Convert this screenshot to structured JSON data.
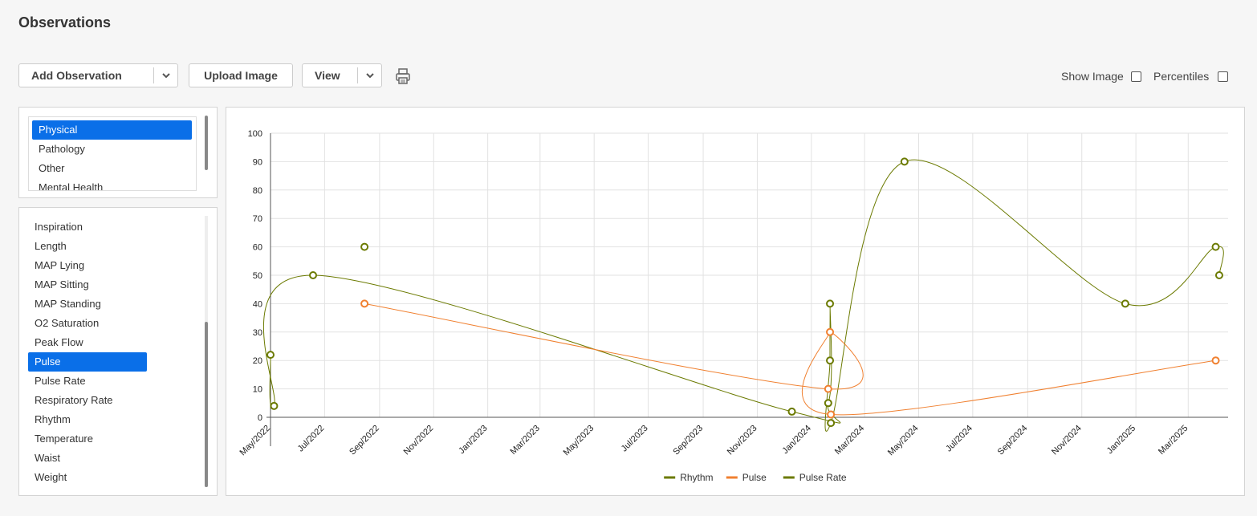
{
  "page": {
    "title": "Observations"
  },
  "toolbar": {
    "add_observation": "Add Observation",
    "upload_image": "Upload Image",
    "view": "View",
    "show_image": "Show Image",
    "percentiles": "Percentiles"
  },
  "categories": [
    "Physical",
    "Pathology",
    "Other",
    "Mental Health"
  ],
  "observations": [
    "Inspiration",
    "Length",
    "MAP Lying",
    "MAP Sitting",
    "MAP Standing",
    "O2 Saturation",
    "Peak Flow",
    "Pulse",
    "Pulse Rate",
    "Respiratory Rate",
    "Rhythm",
    "Temperature",
    "Waist",
    "Weight"
  ],
  "icons": {
    "print": "print-icon",
    "dropdown": "chevron-down-icon"
  },
  "colors": {
    "selected": "#0a6fe8",
    "rhythm": "#6b7a00",
    "pulse": "#f08030",
    "pulse_rate": "#6b7a00"
  },
  "chart_data": {
    "type": "line",
    "x_type": "date",
    "xlim": [
      "2022-05-01",
      "2025-04-15"
    ],
    "ylim": [
      0,
      100
    ],
    "x_ticks": [
      "May/2022",
      "Jul/2022",
      "Sep/2022",
      "Nov/2022",
      "Jan/2023",
      "Mar/2023",
      "May/2023",
      "Jul/2023",
      "Sep/2023",
      "Nov/2023",
      "Jan/2024",
      "Mar/2024",
      "May/2024",
      "Jul/2024",
      "Sep/2024",
      "Nov/2024",
      "Jan/2025",
      "Mar/2025"
    ],
    "y_ticks": [
      0,
      10,
      20,
      30,
      40,
      50,
      60,
      70,
      80,
      90,
      100
    ],
    "legend_position": "bottom",
    "grid": true,
    "series": [
      {
        "name": "Rhythm",
        "color": "#6b7a00",
        "points": [
          [
            "2022-05-01",
            22
          ],
          [
            "2022-05-05",
            4
          ],
          [
            "2022-06-18",
            50
          ],
          [
            "2023-12-10",
            2
          ],
          [
            "2024-01-20",
            5
          ],
          [
            "2024-01-22",
            40
          ],
          [
            "2024-01-22",
            20
          ],
          [
            "2024-01-23",
            -2
          ],
          [
            "2024-04-15",
            90
          ],
          [
            "2024-12-20",
            40
          ],
          [
            "2025-04-01",
            60
          ],
          [
            "2025-04-05",
            50
          ]
        ]
      },
      {
        "name": "Pulse",
        "color": "#f08030",
        "points": [
          [
            "2022-08-15",
            40
          ],
          [
            "2024-01-20",
            10
          ],
          [
            "2024-01-22",
            30
          ],
          [
            "2024-01-23",
            1
          ],
          [
            "2025-04-01",
            20
          ]
        ]
      },
      {
        "name": "Pulse Rate",
        "color": "#6b7a00",
        "points": [
          [
            "2022-08-15",
            60
          ]
        ]
      }
    ]
  }
}
